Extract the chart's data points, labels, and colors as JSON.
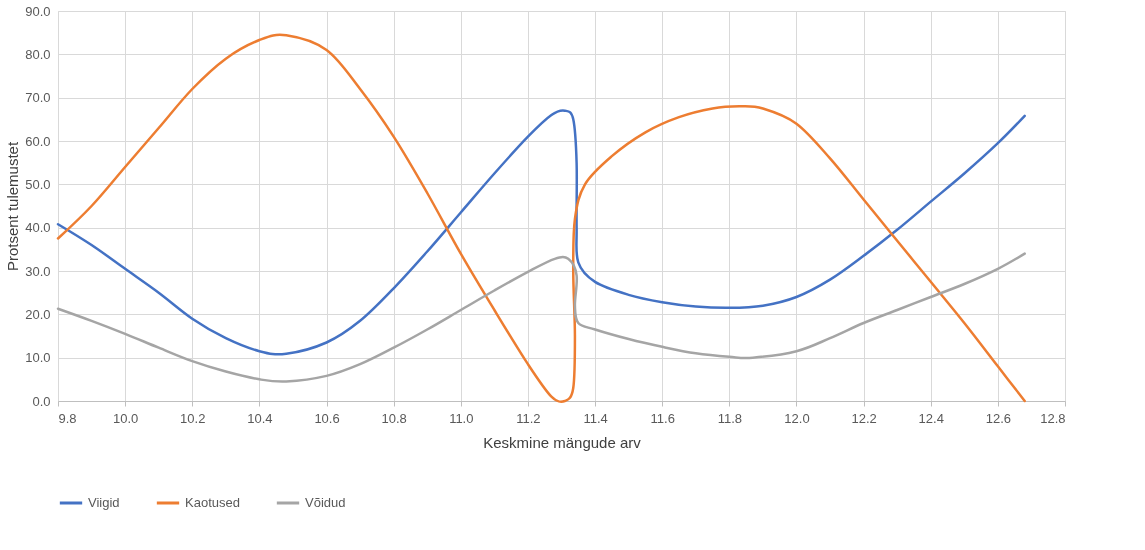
{
  "chart_data": {
    "type": "line",
    "xlabel": "Keskmine mängude arv",
    "ylabel": "Protsent tulemustet",
    "xlim": [
      9.8,
      12.8
    ],
    "xticks": [
      {
        "value": 9.8,
        "label": "9.8"
      },
      {
        "value": 10.0,
        "label": "10.0"
      },
      {
        "value": 10.2,
        "label": "10.2"
      },
      {
        "value": 10.4,
        "label": "10.4"
      },
      {
        "value": 10.6,
        "label": "10.6"
      },
      {
        "value": 10.8,
        "label": "10.8"
      },
      {
        "value": 11.0,
        "label": "11.0"
      },
      {
        "value": 11.2,
        "label": "11.2"
      },
      {
        "value": 11.4,
        "label": "11.4"
      },
      {
        "value": 11.6,
        "label": "11.6"
      },
      {
        "value": 11.8,
        "label": "11.8"
      },
      {
        "value": 12.0,
        "label": "12.0"
      },
      {
        "value": 12.2,
        "label": "12.2"
      },
      {
        "value": 12.4,
        "label": "12.4"
      },
      {
        "value": 12.6,
        "label": "12.6"
      },
      {
        "value": 12.8,
        "label": "12.8"
      }
    ],
    "ylim": [
      0,
      90
    ],
    "yticks": [
      {
        "value": 0,
        "label": "0.0"
      },
      {
        "value": 10,
        "label": "10.0"
      },
      {
        "value": 20,
        "label": "20.0"
      },
      {
        "value": 30,
        "label": "30.0"
      },
      {
        "value": 40,
        "label": "40.0"
      },
      {
        "value": 50,
        "label": "50.0"
      },
      {
        "value": 60,
        "label": "60.0"
      },
      {
        "value": 70,
        "label": "70.0"
      },
      {
        "value": 80,
        "label": "80.0"
      },
      {
        "value": 90,
        "label": "90.0"
      }
    ],
    "grid": true,
    "legend": "bottom",
    "marker": "none",
    "line_style": "solid",
    "series": [
      {
        "name": "Viigid",
        "color": "#4472c4",
        "x": [
          9.8,
          9.9,
          10.0,
          10.1,
          10.2,
          10.3,
          10.4,
          10.48,
          10.6,
          10.7,
          10.8,
          10.9,
          11.0,
          11.1,
          11.2,
          11.27,
          11.31,
          11.335,
          11.345,
          11.345,
          11.35,
          11.4,
          11.5,
          11.6,
          11.7,
          11.8,
          11.9,
          12.0,
          12.1,
          12.2,
          12.3,
          12.4,
          12.5,
          12.6,
          12.68
        ],
        "values": [
          40.8,
          36,
          30.5,
          25,
          19,
          14.5,
          11.5,
          10.9,
          13.5,
          18.5,
          26,
          34.5,
          43.5,
          52.5,
          61,
          66,
          67,
          65,
          55,
          40,
          32,
          27.5,
          24.5,
          22.8,
          21.8,
          21.5,
          22,
          24,
          28,
          33.5,
          39.5,
          46,
          52.5,
          59.5,
          65.8
        ]
      },
      {
        "name": "Kaotused",
        "color": "#ed7d31",
        "x": [
          9.8,
          9.9,
          10.0,
          10.1,
          10.2,
          10.3,
          10.4,
          10.48,
          10.6,
          10.7,
          10.8,
          10.9,
          11.0,
          11.1,
          11.2,
          11.27,
          11.31,
          11.335,
          11.34,
          11.335,
          11.34,
          11.37,
          11.45,
          11.55,
          11.65,
          11.75,
          11.83,
          11.9,
          12.0,
          12.1,
          12.2,
          12.3,
          12.4,
          12.5,
          12.6,
          12.68
        ],
        "values": [
          37.5,
          45,
          54,
          63,
          72,
          79,
          83.3,
          84.4,
          81,
          72,
          61,
          48,
          34,
          21,
          8.5,
          1,
          0,
          3,
          15,
          30,
          42,
          50,
          56.5,
          62,
          65.5,
          67.5,
          68,
          67.5,
          64,
          56,
          46.5,
          37,
          27.5,
          18,
          8,
          0
        ]
      },
      {
        "name": "Võidud",
        "color": "#a5a5a5",
        "x": [
          9.8,
          9.9,
          10.0,
          10.1,
          10.2,
          10.3,
          10.4,
          10.48,
          10.6,
          10.7,
          10.8,
          10.9,
          11.0,
          11.1,
          11.2,
          11.28,
          11.32,
          11.345,
          11.34,
          11.35,
          11.4,
          11.5,
          11.6,
          11.7,
          11.8,
          11.87,
          12.0,
          12.1,
          12.2,
          12.3,
          12.4,
          12.5,
          12.6,
          12.68
        ],
        "values": [
          21.3,
          18.5,
          15.5,
          12.3,
          9.2,
          6.8,
          5,
          4.5,
          5.8,
          8.5,
          12.3,
          16.5,
          21,
          25.5,
          29.8,
          32.8,
          32.8,
          29,
          22,
          18,
          16.5,
          14.3,
          12.5,
          11,
          10.2,
          10,
          11.5,
          14.5,
          18,
          21,
          24,
          27,
          30.5,
          34
        ]
      }
    ]
  }
}
